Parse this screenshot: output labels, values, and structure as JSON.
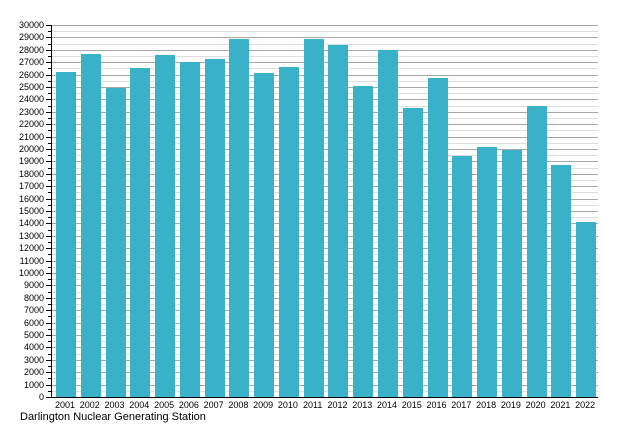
{
  "chart_data": {
    "type": "bar",
    "title": "",
    "caption": "Darlington Nuclear Generating Station",
    "xlabel": "",
    "ylabel": "",
    "legend": "none",
    "grid": "horizontal; minor lines every 500 (light gray), major lines every 1000 (gray)",
    "ylim": [
      0,
      30000
    ],
    "y_major_step": 1000,
    "y_minor_step": 500,
    "bar_color": "#38b1c9",
    "axis_color": "#000000",
    "major_grid_color": "#a8a8a8",
    "minor_grid_color": "#dedede",
    "categories": [
      "2001",
      "2002",
      "2003",
      "2004",
      "2005",
      "2006",
      "2007",
      "2008",
      "2009",
      "2010",
      "2011",
      "2012",
      "2013",
      "2014",
      "2015",
      "2016",
      "2017",
      "2018",
      "2019",
      "2020",
      "2021",
      "2022"
    ],
    "values": [
      26200,
      27650,
      24900,
      26550,
      27600,
      27000,
      27250,
      28850,
      26100,
      26600,
      28900,
      28350,
      25100,
      28000,
      23300,
      25750,
      19400,
      20150,
      19950,
      23500,
      18700,
      14100
    ],
    "y_tick_labels": [
      "0",
      "1000",
      "2000",
      "3000",
      "4000",
      "5000",
      "6000",
      "7000",
      "8000",
      "9000",
      "10000",
      "11000",
      "12000",
      "13000",
      "14000",
      "15000",
      "16000",
      "17000",
      "18000",
      "19000",
      "20000",
      "21000",
      "22000",
      "23000",
      "24000",
      "25000",
      "26000",
      "27000",
      "28000",
      "29000",
      "30000"
    ]
  }
}
